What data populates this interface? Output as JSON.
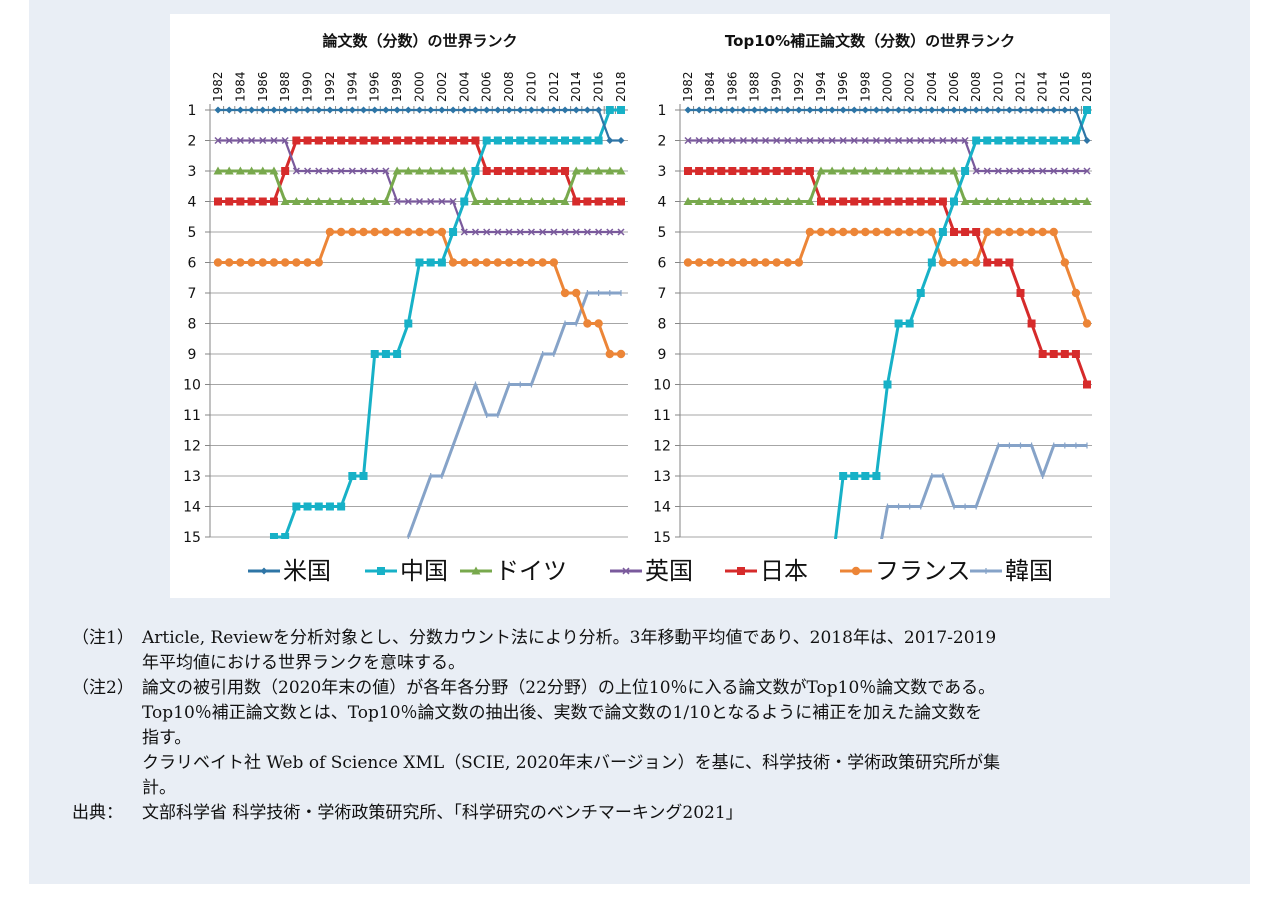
{
  "colors": {
    "panel_bg": "#e9eef5",
    "grid": "#a6a6a6",
    "axis": "#868686"
  },
  "legend": [
    {
      "name": "米国",
      "color": "#2e75a6",
      "marker": "diamond"
    },
    {
      "name": "中国",
      "color": "#17b1c7",
      "marker": "square"
    },
    {
      "name": "ドイツ",
      "color": "#78a94d",
      "marker": "triangle"
    },
    {
      "name": "英国",
      "color": "#7a5a9c",
      "marker": "x"
    },
    {
      "name": "日本",
      "color": "#d62b2b",
      "marker": "square"
    },
    {
      "name": "フランス",
      "color": "#ec8537",
      "marker": "circle"
    },
    {
      "name": "韓国",
      "color": "#86a3c8",
      "marker": "dash"
    }
  ],
  "chart_data": [
    {
      "type": "line",
      "title": "論文数（分数）の世界ランク",
      "xlabel": "",
      "ylabel": "",
      "x": [
        1982,
        1983,
        1984,
        1985,
        1986,
        1987,
        1988,
        1989,
        1990,
        1991,
        1992,
        1993,
        1994,
        1995,
        1996,
        1997,
        1998,
        1999,
        2000,
        2001,
        2002,
        2003,
        2004,
        2005,
        2006,
        2007,
        2008,
        2009,
        2010,
        2011,
        2012,
        2013,
        2014,
        2015,
        2016,
        2017,
        2018
      ],
      "x_tick_labels": [
        "1982",
        "1984",
        "1986",
        "1988",
        "1990",
        "1992",
        "1994",
        "1996",
        "1998",
        "2000",
        "2002",
        "2004",
        "2006",
        "2008",
        "2010",
        "2012",
        "2014",
        "2016",
        "2018"
      ],
      "y_tick_labels": [
        "1",
        "2",
        "3",
        "4",
        "5",
        "6",
        "7",
        "8",
        "9",
        "10",
        "11",
        "12",
        "13",
        "14",
        "15"
      ],
      "ylim": [
        1,
        15
      ],
      "y_inverted": true,
      "x_axis_position": "top",
      "grid": true,
      "legend_position": "bottom",
      "series": [
        {
          "name": "米国",
          "values": [
            1,
            1,
            1,
            1,
            1,
            1,
            1,
            1,
            1,
            1,
            1,
            1,
            1,
            1,
            1,
            1,
            1,
            1,
            1,
            1,
            1,
            1,
            1,
            1,
            1,
            1,
            1,
            1,
            1,
            1,
            1,
            1,
            1,
            1,
            1,
            2,
            2
          ]
        },
        {
          "name": "中国",
          "values": [
            null,
            null,
            null,
            null,
            null,
            15,
            15,
            14,
            14,
            14,
            14,
            14,
            13,
            13,
            9,
            9,
            9,
            8,
            6,
            6,
            6,
            5,
            4,
            3,
            2,
            2,
            2,
            2,
            2,
            2,
            2,
            2,
            2,
            2,
            2,
            1,
            1
          ]
        },
        {
          "name": "ドイツ",
          "values": [
            3,
            3,
            3,
            3,
            3,
            3,
            4,
            4,
            4,
            4,
            4,
            4,
            4,
            4,
            4,
            4,
            3,
            3,
            3,
            3,
            3,
            3,
            3,
            4,
            4,
            4,
            4,
            4,
            4,
            4,
            4,
            4,
            3,
            3,
            3,
            3,
            3
          ]
        },
        {
          "name": "英国",
          "values": [
            2,
            2,
            2,
            2,
            2,
            2,
            2,
            3,
            3,
            3,
            3,
            3,
            3,
            3,
            3,
            3,
            4,
            4,
            4,
            4,
            4,
            4,
            5,
            5,
            5,
            5,
            5,
            5,
            5,
            5,
            5,
            5,
            5,
            5,
            5,
            5,
            5
          ]
        },
        {
          "name": "日本",
          "values": [
            4,
            4,
            4,
            4,
            4,
            4,
            3,
            2,
            2,
            2,
            2,
            2,
            2,
            2,
            2,
            2,
            2,
            2,
            2,
            2,
            2,
            2,
            2,
            2,
            3,
            3,
            3,
            3,
            3,
            3,
            3,
            3,
            4,
            4,
            4,
            4,
            4
          ]
        },
        {
          "name": "フランス",
          "values": [
            6,
            6,
            6,
            6,
            6,
            6,
            6,
            6,
            6,
            6,
            5,
            5,
            5,
            5,
            5,
            5,
            5,
            5,
            5,
            5,
            5,
            6,
            6,
            6,
            6,
            6,
            6,
            6,
            6,
            6,
            6,
            7,
            7,
            8,
            8,
            9,
            9
          ]
        },
        {
          "name": "韓国",
          "values": [
            null,
            null,
            null,
            null,
            null,
            null,
            null,
            null,
            null,
            null,
            null,
            null,
            null,
            null,
            null,
            null,
            null,
            15,
            14,
            13,
            13,
            12,
            11,
            10,
            11,
            11,
            10,
            10,
            10,
            9,
            9,
            8,
            8,
            7,
            7,
            7,
            7
          ]
        }
      ]
    },
    {
      "type": "line",
      "title": "Top10%補正論文数（分数）の世界ランク",
      "xlabel": "",
      "ylabel": "",
      "x": [
        1982,
        1983,
        1984,
        1985,
        1986,
        1987,
        1988,
        1989,
        1990,
        1991,
        1992,
        1993,
        1994,
        1995,
        1996,
        1997,
        1998,
        1999,
        2000,
        2001,
        2002,
        2003,
        2004,
        2005,
        2006,
        2007,
        2008,
        2009,
        2010,
        2011,
        2012,
        2013,
        2014,
        2015,
        2016,
        2017,
        2018
      ],
      "x_tick_labels": [
        "1982",
        "1984",
        "1986",
        "1988",
        "1990",
        "1992",
        "1994",
        "1996",
        "1998",
        "2000",
        "2002",
        "2004",
        "2006",
        "2008",
        "2010",
        "2012",
        "2014",
        "2016",
        "2018"
      ],
      "y_tick_labels": [
        "1",
        "2",
        "3",
        "4",
        "5",
        "6",
        "7",
        "8",
        "9",
        "10",
        "11",
        "12",
        "13",
        "14",
        "15"
      ],
      "ylim": [
        1,
        15
      ],
      "y_inverted": true,
      "x_axis_position": "top",
      "grid": true,
      "legend_position": "bottom",
      "series": [
        {
          "name": "米国",
          "values": [
            1,
            1,
            1,
            1,
            1,
            1,
            1,
            1,
            1,
            1,
            1,
            1,
            1,
            1,
            1,
            1,
            1,
            1,
            1,
            1,
            1,
            1,
            1,
            1,
            1,
            1,
            1,
            1,
            1,
            1,
            1,
            1,
            1,
            1,
            1,
            1,
            2
          ]
        },
        {
          "name": "中国",
          "values": [
            null,
            null,
            null,
            null,
            null,
            null,
            null,
            null,
            null,
            null,
            null,
            null,
            null,
            16,
            13,
            13,
            13,
            13,
            10,
            8,
            8,
            7,
            6,
            5,
            4,
            3,
            2,
            2,
            2,
            2,
            2,
            2,
            2,
            2,
            2,
            2,
            1
          ]
        },
        {
          "name": "ドイツ",
          "values": [
            4,
            4,
            4,
            4,
            4,
            4,
            4,
            4,
            4,
            4,
            4,
            4,
            3,
            3,
            3,
            3,
            3,
            3,
            3,
            3,
            3,
            3,
            3,
            3,
            3,
            4,
            4,
            4,
            4,
            4,
            4,
            4,
            4,
            4,
            4,
            4,
            4
          ]
        },
        {
          "name": "英国",
          "values": [
            2,
            2,
            2,
            2,
            2,
            2,
            2,
            2,
            2,
            2,
            2,
            2,
            2,
            2,
            2,
            2,
            2,
            2,
            2,
            2,
            2,
            2,
            2,
            2,
            2,
            2,
            3,
            3,
            3,
            3,
            3,
            3,
            3,
            3,
            3,
            3,
            3
          ]
        },
        {
          "name": "日本",
          "values": [
            3,
            3,
            3,
            3,
            3,
            3,
            3,
            3,
            3,
            3,
            3,
            3,
            4,
            4,
            4,
            4,
            4,
            4,
            4,
            4,
            4,
            4,
            4,
            4,
            5,
            5,
            5,
            6,
            6,
            6,
            7,
            8,
            9,
            9,
            9,
            9,
            10
          ]
        },
        {
          "name": "フランス",
          "values": [
            6,
            6,
            6,
            6,
            6,
            6,
            6,
            6,
            6,
            6,
            6,
            5,
            5,
            5,
            5,
            5,
            5,
            5,
            5,
            5,
            5,
            5,
            5,
            6,
            6,
            6,
            6,
            5,
            5,
            5,
            5,
            5,
            5,
            5,
            6,
            7,
            8
          ]
        },
        {
          "name": "韓国",
          "values": [
            null,
            null,
            null,
            null,
            null,
            null,
            null,
            null,
            null,
            null,
            null,
            null,
            null,
            null,
            null,
            null,
            null,
            16,
            14,
            14,
            14,
            14,
            13,
            13,
            14,
            14,
            14,
            13,
            12,
            12,
            12,
            12,
            13,
            12,
            12,
            12,
            12
          ]
        }
      ]
    }
  ],
  "notes": {
    "note1_head": "（注1）",
    "note1_line1": "Article, Reviewを分析対象とし、分数カウント法により分析。3年移動平均値であり、2018年は、2017-2019",
    "note1_line2": "年平均値における世界ランクを意味する。",
    "note2_head": "（注2）",
    "note2_line1": "論文の被引用数（2020年末の値）が各年各分野（22分野）の上位10％に入る論文数がTop10％論文数である。",
    "note2_line2": "Top10％補正論文数とは、Top10％論文数の抽出後、実数で論文数の1/10となるように補正を加えた論文数を",
    "note2_line3": "指す。",
    "note2_line4": "クラリベイト社 Web of Science XML（SCIE, 2020年末バージョン）を基に、科学技術・学術政策研究所が集",
    "note2_line5": "計。",
    "source_head": "出典：",
    "source_body": "文部科学省 科学技術・学術政策研究所、「科学研究のベンチマーキング2021」"
  }
}
